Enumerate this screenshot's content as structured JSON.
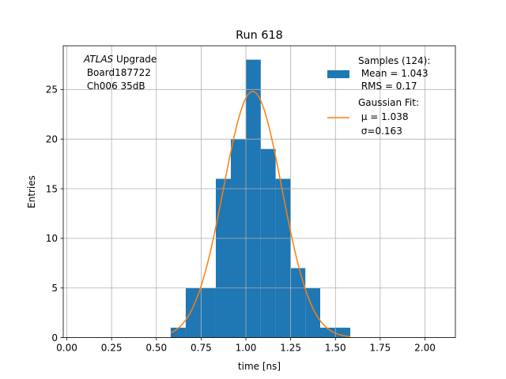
{
  "chart_data": {
    "type": "bar",
    "title": "Run 618",
    "xlabel": "time [ns]",
    "ylabel": "Entries",
    "xlim": [
      -0.02,
      2.17
    ],
    "ylim": [
      0,
      29.4
    ],
    "x_ticks": [
      "0.00",
      "0.25",
      "0.50",
      "0.75",
      "1.00",
      "1.25",
      "1.50",
      "1.75",
      "2.00"
    ],
    "x_tick_values": [
      0.0,
      0.25,
      0.5,
      0.75,
      1.0,
      1.25,
      1.5,
      1.75,
      2.0
    ],
    "y_ticks": [
      "0",
      "5",
      "10",
      "15",
      "20",
      "25"
    ],
    "y_tick_values": [
      0,
      5,
      10,
      15,
      20,
      25
    ],
    "grid": true,
    "histogram": {
      "bin_edges": [
        0.58,
        0.664,
        0.748,
        0.832,
        0.916,
        1.0,
        1.083,
        1.166,
        1.249,
        1.332,
        1.415,
        1.5,
        1.583
      ],
      "counts": [
        1,
        5,
        5,
        16,
        20,
        28,
        19,
        16,
        7,
        5,
        1,
        1
      ],
      "color": "#1f77b4"
    },
    "fit": {
      "mu": 1.038,
      "sigma": 0.163,
      "amplitude": 24.8,
      "range": [
        0.58,
        1.583
      ],
      "color": "#ff7f0e"
    },
    "annotation": {
      "line1_italic": "ATLAS",
      "line1_rest": " Upgrade",
      "line2": " Board187722",
      "line3": " Ch006 35dB"
    },
    "legend": {
      "position": "top-right",
      "samples_lines": [
        "Samples (124):",
        " Mean = 1.043",
        " RMS = 0.17"
      ],
      "fit_lines": [
        "Gaussian Fit:",
        " μ = 1.038",
        " σ=0.163"
      ]
    }
  }
}
